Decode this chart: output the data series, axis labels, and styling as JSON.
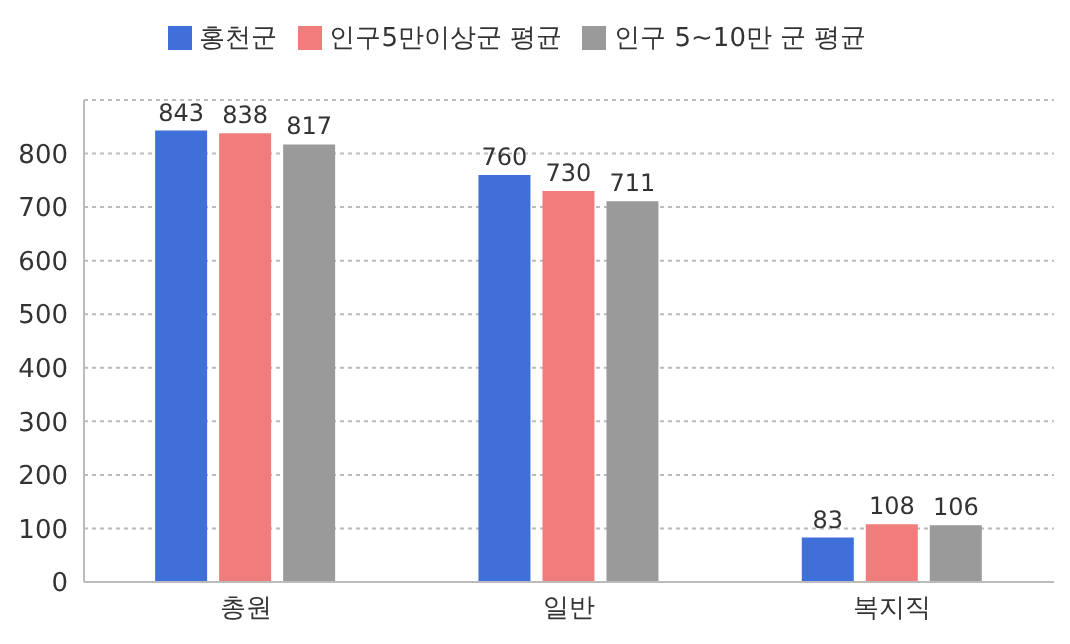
{
  "chart_data": {
    "type": "bar",
    "categories": [
      "총원",
      "일반",
      "복지직"
    ],
    "series": [
      {
        "name": "홍천군",
        "color": "#3f6fd8",
        "values": [
          843,
          760,
          83
        ]
      },
      {
        "name": "인구5만이상군 평균",
        "color": "#f07c7c",
        "values": [
          838,
          730,
          108
        ]
      },
      {
        "name": "인구 5~10만 군 평균",
        "color": "#9a9a9a",
        "values": [
          817,
          711,
          106
        ]
      }
    ],
    "ylim": [
      0,
      900
    ],
    "yticks": [
      0,
      100,
      200,
      300,
      400,
      500,
      600,
      700,
      800,
      {
        "value": 900,
        "label": null
      }
    ],
    "grid": "y",
    "legend": "top",
    "data_labels": true
  }
}
